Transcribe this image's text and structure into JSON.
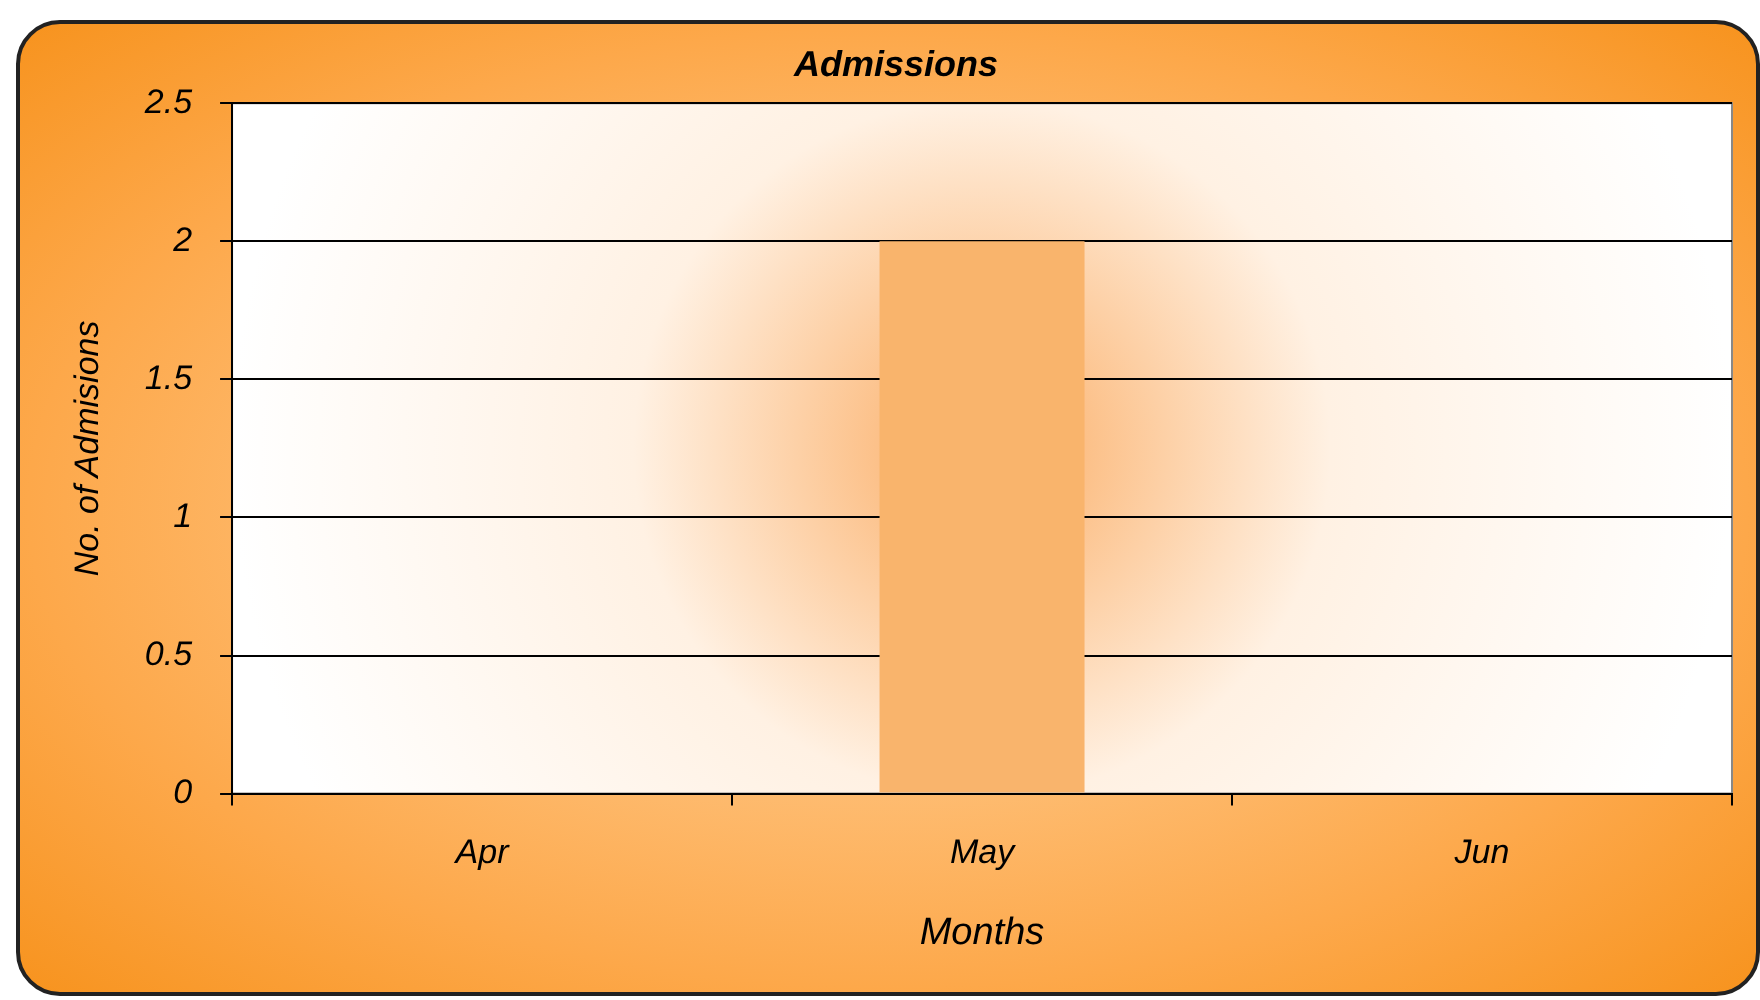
{
  "chart_data": {
    "type": "bar",
    "title": "Admissions",
    "xlabel": "Months",
    "ylabel": "No. of Admisions",
    "categories": [
      "Apr",
      "May",
      "Jun"
    ],
    "values": [
      0,
      2,
      0
    ],
    "color": "#f9b46c",
    "ylim": [
      0,
      2.5
    ],
    "yticks": [
      0,
      0.5,
      1,
      1.5,
      2,
      2.5
    ],
    "grid": "y"
  }
}
